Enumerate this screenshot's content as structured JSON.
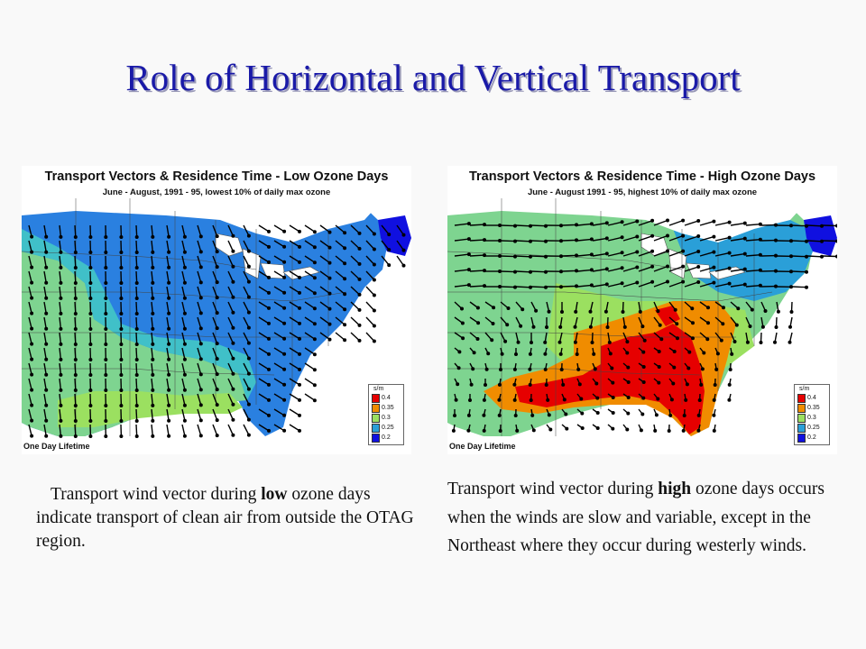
{
  "slide": {
    "title": "Role of Horizontal and Vertical Transport"
  },
  "maps": [
    {
      "title": "Transport Vectors & Residence Time - Low Ozone Days",
      "subtitle": "June - August, 1991 - 95, lowest 10% of daily max ozone",
      "footer": "One Day Lifetime",
      "legend": {
        "unit": "s/m",
        "items": [
          {
            "label": "0.4",
            "color": "#e60000"
          },
          {
            "label": "0.35",
            "color": "#f08c00"
          },
          {
            "label": "0.3",
            "color": "#9be060"
          },
          {
            "label": "0.25",
            "color": "#2a9fd8"
          },
          {
            "label": "0.2",
            "color": "#1010e0"
          }
        ]
      }
    },
    {
      "title": "Transport Vectors & Residence Time - High Ozone Days",
      "subtitle": "June - August 1991 - 95, highest 10% of daily max ozone",
      "footer": "One Day Lifetime",
      "legend": {
        "unit": "s/m",
        "items": [
          {
            "label": "0.4",
            "color": "#e60000"
          },
          {
            "label": "0.35",
            "color": "#f08c00"
          },
          {
            "label": "0.3",
            "color": "#9be060"
          },
          {
            "label": "0.25",
            "color": "#2a9fd8"
          },
          {
            "label": "0.2",
            "color": "#1010e0"
          }
        ]
      }
    }
  ],
  "captions": {
    "left": {
      "pre": "Transport wind vector during ",
      "bold": "low",
      "post": " ozone days indicate transport of clean air from outside the OTAG region."
    },
    "right": {
      "pre": "Transport wind vector during ",
      "bold": "high",
      "post": " ozone days occurs when the winds are slow and variable, except in the Northeast where they occur during westerly winds."
    }
  }
}
